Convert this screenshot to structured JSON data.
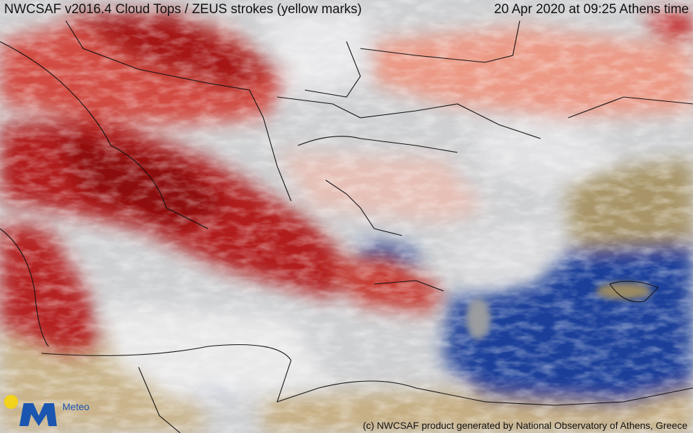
{
  "header": {
    "title": "NWCSAF v2016.4 Cloud Tops / ZEUS strokes (yellow marks)",
    "timestamp": "20 Apr 2020 at 09:25 Athens time"
  },
  "footer": {
    "credit": "(c) NWCSAF product generated by National Observatory of Athens, Greece"
  },
  "logo": {
    "text": "Meteo"
  }
}
